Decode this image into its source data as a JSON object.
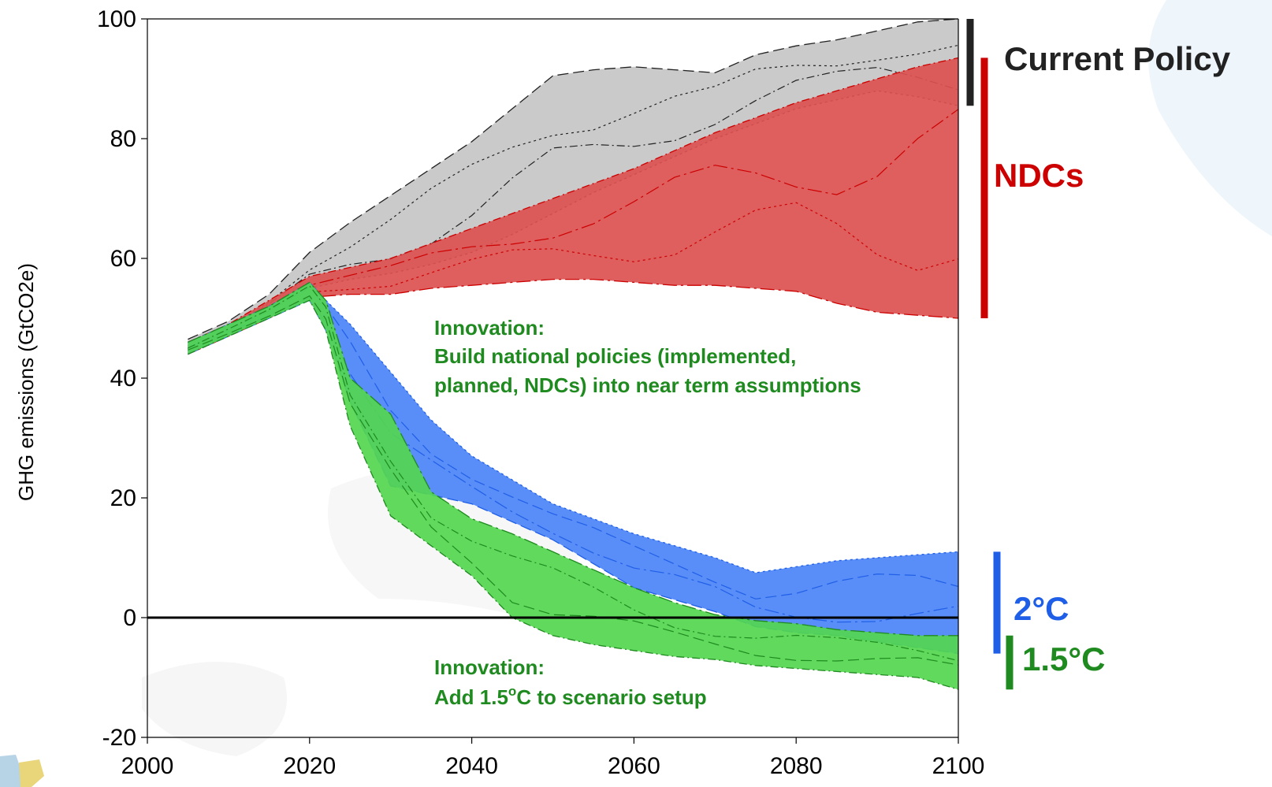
{
  "chart_data": {
    "type": "area",
    "title": "",
    "xlabel": "",
    "ylabel": "GHG emissions (GtCO2e)",
    "xlim": [
      2000,
      2100
    ],
    "ylim": [
      -20,
      100
    ],
    "x_ticks": [
      2000,
      2020,
      2040,
      2060,
      2080,
      2100
    ],
    "y_ticks": [
      -20,
      0,
      20,
      40,
      60,
      80,
      100
    ],
    "zero_line": true,
    "grid": false,
    "legend_position": "right",
    "colors": {
      "current_policy": "#222222",
      "ndcs": "#cc0000",
      "two_c": "#1f5fe8",
      "one_five_c": "#1f8a1f",
      "current_policy_band": "#c6c6c6",
      "ndcs_band": "#dc5050",
      "two_c_band": "#5087f7",
      "one_five_c_band": "#53d64f"
    },
    "series": [
      {
        "name": "Current Policy",
        "key": "current_policy",
        "x": [
          2005,
          2010,
          2015,
          2020,
          2025,
          2030,
          2035,
          2040,
          2045,
          2050,
          2055,
          2060,
          2065,
          2070,
          2075,
          2080,
          2085,
          2090,
          2095,
          2100
        ],
        "upper": [
          46.5,
          49.5,
          54,
          61,
          66,
          70.5,
          75,
          79.5,
          85,
          90.5,
          91.5,
          92,
          91.5,
          91,
          94,
          95.5,
          96.5,
          98,
          99.5,
          100
        ],
        "lower": [
          44,
          47,
          51,
          55,
          56.5,
          57.5,
          59,
          61,
          64,
          67.5,
          71,
          74,
          77,
          80,
          82.5,
          85,
          86.5,
          88,
          87,
          85.5
        ]
      },
      {
        "name": "NDCs",
        "key": "ndcs",
        "x": [
          2005,
          2010,
          2015,
          2020,
          2025,
          2030,
          2035,
          2040,
          2045,
          2050,
          2055,
          2060,
          2065,
          2070,
          2075,
          2080,
          2085,
          2090,
          2095,
          2100
        ],
        "upper": [
          46,
          49,
          53,
          57,
          58.5,
          60,
          62.5,
          65,
          67.5,
          70,
          72.5,
          75,
          78,
          81,
          83.5,
          86,
          88,
          90,
          92,
          93.5
        ],
        "lower": [
          44,
          47,
          50,
          53.5,
          54,
          54,
          55,
          55.5,
          56,
          56.5,
          56.5,
          56,
          55.5,
          55.5,
          55,
          54.5,
          52.5,
          51,
          50.5,
          50
        ]
      },
      {
        "name": "2°C",
        "key": "two_c",
        "x": [
          2005,
          2010,
          2015,
          2020,
          2022,
          2025,
          2030,
          2035,
          2040,
          2045,
          2050,
          2055,
          2060,
          2065,
          2070,
          2075,
          2080,
          2085,
          2090,
          2095,
          2100
        ],
        "upper": [
          46,
          49,
          52,
          56,
          53,
          49,
          41,
          33,
          27,
          23,
          19,
          16.5,
          14,
          12,
          10,
          7.5,
          8.5,
          9.5,
          10,
          10.5,
          11
        ],
        "lower": [
          44,
          47,
          50,
          53,
          48,
          36,
          22,
          20.5,
          19,
          16,
          13,
          9,
          5,
          3,
          1,
          -1.5,
          -2.5,
          -3,
          -4,
          -5,
          -6
        ]
      },
      {
        "name": "1.5°C",
        "key": "one_five_c",
        "x": [
          2005,
          2010,
          2015,
          2020,
          2022,
          2025,
          2030,
          2035,
          2040,
          2045,
          2050,
          2055,
          2060,
          2065,
          2070,
          2075,
          2080,
          2085,
          2090,
          2095,
          2100
        ],
        "upper": [
          46,
          49,
          52,
          56,
          53,
          40,
          34,
          21,
          16.5,
          14,
          11,
          8,
          5,
          2.5,
          0.5,
          -0.5,
          -1,
          -2,
          -2.5,
          -3,
          -3
        ],
        "lower": [
          44,
          47,
          50,
          53,
          48,
          32,
          17,
          12,
          7,
          0,
          -3,
          -4.5,
          -5.5,
          -6.5,
          -7,
          -8,
          -8.5,
          -9,
          -9.5,
          -10,
          -12
        ]
      }
    ]
  },
  "legend": {
    "current_policy_label": "Current Policy",
    "ndcs_label": "NDCs",
    "two_c_label": "2°C",
    "one_five_c_label": "1.5°C"
  },
  "annotations": {
    "innovation_top": {
      "line1": "Innovation:",
      "line2": "Build national policies (implemented,",
      "line3": "planned, NDCs) into near term assumptions"
    },
    "innovation_bottom": {
      "line1": "Innovation:",
      "line2_prefix": "Add 1.5",
      "line2_superscript": "o",
      "line2_suffix": "C to scenario setup"
    }
  }
}
